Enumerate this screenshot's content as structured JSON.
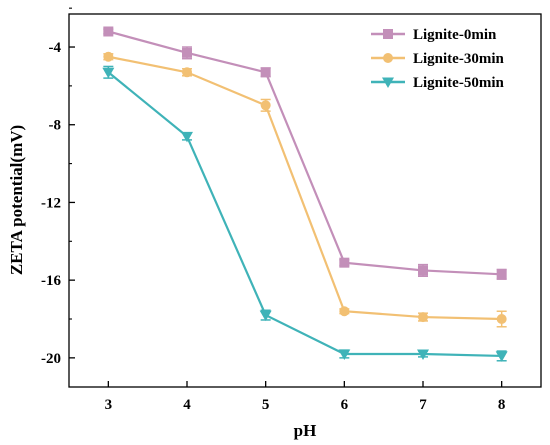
{
  "chart_data": {
    "type": "line",
    "title": "",
    "xlabel": "pH",
    "ylabel": "ZETA potential(mV)",
    "x": [
      3,
      4,
      5,
      6,
      7,
      8
    ],
    "xlim": [
      2.5,
      8.5
    ],
    "ylim": [
      -21.5,
      -2.3
    ],
    "xticks": [
      "3",
      "4",
      "5",
      "6",
      "7",
      "8"
    ],
    "yticks": [
      -4,
      -8,
      -12,
      -16,
      -20
    ],
    "ytick_labels": [
      "-4",
      "-8",
      "-12",
      "-16",
      "-20"
    ],
    "grid": false,
    "legend_position": "top-right",
    "series": [
      {
        "name": "Lignite-0min",
        "color": "#c38fb9",
        "marker": "square",
        "values": [
          -3.2,
          -4.3,
          -5.3,
          -15.1,
          -15.5,
          -15.7
        ],
        "errors": [
          0.12,
          0.3,
          0.22,
          0.15,
          0.3,
          0.25
        ]
      },
      {
        "name": "Lignite-30min",
        "color": "#f2c073",
        "marker": "circle",
        "values": [
          -4.5,
          -5.3,
          -7.0,
          -17.6,
          -17.9,
          -18.0
        ],
        "errors": [
          0.15,
          0.18,
          0.3,
          0.12,
          0.2,
          0.4
        ]
      },
      {
        "name": "Lignite-50min",
        "color": "#3fb3b8",
        "marker": "triangle-down",
        "values": [
          -5.3,
          -8.6,
          -17.8,
          -19.8,
          -19.8,
          -19.9
        ],
        "errors": [
          0.3,
          0.18,
          0.25,
          0.2,
          0.15,
          0.25
        ]
      }
    ]
  }
}
